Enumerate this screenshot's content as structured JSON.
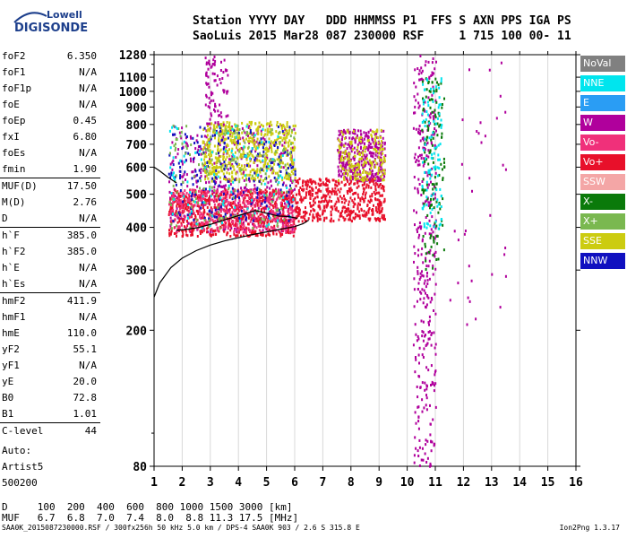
{
  "logo": {
    "top": "Lowell",
    "bottom": "DIGISONDE"
  },
  "header": {
    "line1": "Station YYYY DAY   DDD HHMMSS P1  FFS S AXN PPS IGA PS",
    "line2": "SaoLuis 2015 Mar28 087 230000 RSF     1 715 100 00- 11"
  },
  "params": [
    {
      "name": "foF2",
      "value": "6.350"
    },
    {
      "name": "foF1",
      "value": "N/A"
    },
    {
      "name": "foF1p",
      "value": "N/A"
    },
    {
      "name": "foE",
      "value": "N/A"
    },
    {
      "name": "foEp",
      "value": "0.45"
    },
    {
      "name": "fxI",
      "value": "6.80"
    },
    {
      "name": "foEs",
      "value": "N/A"
    },
    {
      "name": "fmin",
      "value": "1.90"
    },
    {
      "name": "MUF(D)",
      "value": "17.50"
    },
    {
      "name": "M(D)",
      "value": "2.76"
    },
    {
      "name": "D",
      "value": "N/A"
    },
    {
      "name": "h`F",
      "value": "385.0"
    },
    {
      "name": "h`F2",
      "value": "385.0"
    },
    {
      "name": "h`E",
      "value": "N/A"
    },
    {
      "name": "h`Es",
      "value": "N/A"
    },
    {
      "name": "hmF2",
      "value": "411.9"
    },
    {
      "name": "hmF1",
      "value": "N/A"
    },
    {
      "name": "hmE",
      "value": "110.0"
    },
    {
      "name": "yF2",
      "value": "55.1"
    },
    {
      "name": "yF1",
      "value": "N/A"
    },
    {
      "name": "yE",
      "value": "20.0"
    },
    {
      "name": "B0",
      "value": "72.8"
    },
    {
      "name": "B1",
      "value": "1.01"
    },
    {
      "name": "C-level",
      "value": "44"
    }
  ],
  "auto": {
    "line1": "Auto:",
    "line2": "Artist5",
    "line3": "500200"
  },
  "legend": [
    {
      "label": "NoVal",
      "color": "#808080"
    },
    {
      "label": "NNE",
      "color": "#00e5ee"
    },
    {
      "label": "E",
      "color": "#2a9df4"
    },
    {
      "label": "W",
      "color": "#b0009c"
    },
    {
      "label": "Vo-",
      "color": "#f0307a"
    },
    {
      "label": "Vo+",
      "color": "#e8102a"
    },
    {
      "label": "SSW",
      "color": "#f4a6a6"
    },
    {
      "label": "X-",
      "color": "#0a7a0a"
    },
    {
      "label": "X+",
      "color": "#7ab850"
    },
    {
      "label": "SSE",
      "color": "#cccc10"
    },
    {
      "label": "NNW",
      "color": "#1010c0"
    }
  ],
  "bottom": {
    "d_line": "D     100  200  400  600  800 1000 1500 3000 [km]",
    "muf_line": "MUF   6.7  6.8  7.0  7.4  8.0  8.8 11.3 17.5 [MHz]"
  },
  "footer": {
    "left": "SAA0K_2015087230000.RSF / 300fx256h 50 kHz 5.0 km / DPS-4 SAA0K 903 / 2.6 S 315.8 E",
    "right": "Ion2Png 1.3.17"
  },
  "chart_data": {
    "type": "scatter",
    "xlabel": "",
    "ylabel": "",
    "xlim": [
      1,
      16
    ],
    "ylim": [
      80,
      1280
    ],
    "y_scale": "log",
    "x_ticks": [
      1,
      2,
      3,
      4,
      5,
      6,
      7,
      8,
      9,
      10,
      11,
      12,
      13,
      14,
      15,
      16
    ],
    "y_ticks": [
      80,
      200,
      300,
      400,
      500,
      600,
      700,
      800,
      900,
      1000,
      1100,
      1280
    ],
    "grid": "vertical",
    "legend_position": "right",
    "clusters": [
      {
        "name": "W",
        "x_range": [
          1.5,
          6.0
        ],
        "y_range": [
          390,
          800
        ],
        "density": 0.6
      },
      {
        "name": "Vo+",
        "x_range": [
          1.5,
          6.0
        ],
        "y_range": [
          380,
          520
        ],
        "density": 1.0
      },
      {
        "name": "Vo-",
        "x_range": [
          1.5,
          6.0
        ],
        "y_range": [
          390,
          520
        ],
        "density": 0.6
      },
      {
        "name": "SSE",
        "x_range": [
          2.7,
          6.0
        ],
        "y_range": [
          550,
          820
        ],
        "density": 0.8
      },
      {
        "name": "NNW",
        "x_range": [
          1.5,
          6.0
        ],
        "y_range": [
          420,
          800
        ],
        "density": 0.3
      },
      {
        "name": "X+",
        "x_range": [
          1.5,
          6.0
        ],
        "y_range": [
          400,
          800
        ],
        "density": 0.25
      },
      {
        "name": "NNE",
        "x_range": [
          1.5,
          6.0
        ],
        "y_range": [
          400,
          800
        ],
        "density": 0.15
      },
      {
        "name": "Vo+",
        "x_range": [
          6.0,
          9.2
        ],
        "y_range": [
          420,
          560
        ],
        "density": 0.7
      },
      {
        "name": "W",
        "x_range": [
          7.5,
          9.2
        ],
        "y_range": [
          550,
          780
        ],
        "density": 0.5
      },
      {
        "name": "SSE",
        "x_range": [
          7.5,
          9.2
        ],
        "y_range": [
          550,
          780
        ],
        "density": 0.25
      },
      {
        "name": "W",
        "x_range": [
          10.2,
          11.0
        ],
        "y_range": [
          80,
          1280
        ],
        "density": 0.5
      },
      {
        "name": "X-",
        "x_range": [
          10.5,
          11.3
        ],
        "y_range": [
          300,
          1100
        ],
        "density": 0.2
      },
      {
        "name": "NNE",
        "x_range": [
          10.5,
          11.2
        ],
        "y_range": [
          400,
          1100
        ],
        "density": 0.15
      },
      {
        "name": "W",
        "x_range": [
          2.8,
          3.6
        ],
        "y_range": [
          800,
          1280
        ],
        "density": 0.12
      },
      {
        "name": "W",
        "x_range": [
          11.5,
          13.5
        ],
        "y_range": [
          200,
          1280
        ],
        "density": 0.05
      }
    ],
    "traces": [
      {
        "name": "virtual-height-curve",
        "x": [
          1.0,
          1.2,
          1.6,
          2.0,
          2.5,
          3.0,
          3.5,
          4.0,
          4.5,
          5.0,
          5.5,
          6.0,
          6.3,
          6.5
        ],
        "y": [
          250,
          275,
          305,
          325,
          342,
          355,
          365,
          373,
          381,
          388,
          395,
          402,
          410,
          420
        ]
      },
      {
        "name": "o-trace",
        "x": [
          1.8,
          2.2,
          2.6,
          3.0,
          3.4,
          3.8,
          4.2,
          4.6,
          5.0,
          5.4,
          5.8,
          6.1
        ],
        "y": [
          392,
          395,
          400,
          408,
          418,
          428,
          438,
          448,
          440,
          432,
          430,
          425
        ]
      },
      {
        "name": "f-trace",
        "x": [
          1.0,
          1.2,
          1.5,
          1.8
        ],
        "y": [
          600,
          585,
          560,
          540
        ]
      }
    ]
  }
}
